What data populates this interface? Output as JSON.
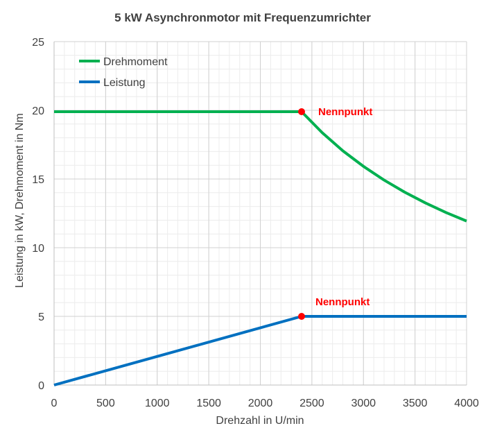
{
  "chart_data": {
    "type": "line",
    "title": "5 kW Asynchronmotor  mit Frequenzumrichter",
    "xlabel": "Drehzahl in U/min",
    "ylabel": "Leistung in kW, Drehmoment in Nm",
    "xlim": [
      0,
      4000
    ],
    "ylim": [
      0,
      25
    ],
    "x_ticks": [
      0,
      500,
      1000,
      1500,
      2000,
      2500,
      3000,
      3500,
      4000
    ],
    "y_ticks": [
      0,
      5,
      10,
      15,
      20,
      25
    ],
    "x_tick_labels": [
      "0",
      "500",
      "1000",
      "1500",
      "2000",
      "2500",
      "3000",
      "3500",
      "4000"
    ],
    "y_tick_labels": [
      "0",
      "5",
      "10",
      "15",
      "20",
      "25"
    ],
    "grid": true,
    "legend_position": "top-left",
    "series": [
      {
        "name": "Drehmoment",
        "color": "#00b050",
        "x": [
          0,
          2400,
          2600,
          2800,
          3000,
          3200,
          3400,
          3600,
          3800,
          4000
        ],
        "y": [
          19.9,
          19.9,
          18.37,
          17.05,
          15.92,
          14.92,
          14.04,
          13.26,
          12.56,
          11.94
        ]
      },
      {
        "name": "Leistung",
        "color": "#0070c0",
        "x": [
          0,
          2400,
          4000
        ],
        "y": [
          0,
          5,
          5
        ]
      }
    ],
    "annotations": [
      {
        "text": "Nennpunkt",
        "x": 2400,
        "y": 19.9,
        "color": "#ff0000"
      },
      {
        "text": "Nennpunkt",
        "x": 2400,
        "y": 5,
        "color": "#ff0000"
      }
    ]
  }
}
